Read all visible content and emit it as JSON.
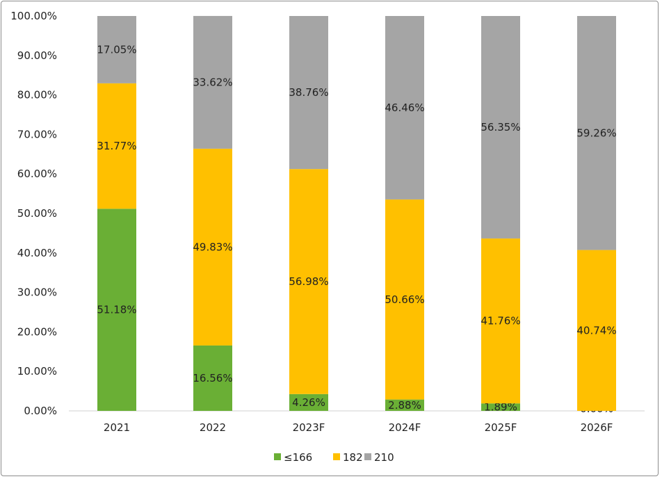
{
  "chart_data": {
    "type": "bar",
    "stacked": true,
    "categories": [
      "2021",
      "2022",
      "2023F",
      "2024F",
      "2025F",
      "2026F"
    ],
    "series": [
      {
        "name": "≤166",
        "color": "#6aaf35",
        "values": [
          51.18,
          16.56,
          4.26,
          2.88,
          1.89,
          0.0
        ]
      },
      {
        "name": "182",
        "color": "#ffc000",
        "values": [
          31.77,
          49.83,
          56.98,
          50.66,
          41.76,
          40.74
        ]
      },
      {
        "name": "210",
        "color": "#a5a5a5",
        "values": [
          17.05,
          33.62,
          38.76,
          46.46,
          56.35,
          59.26
        ]
      }
    ],
    "ylim": [
      0,
      100
    ],
    "yticks": [
      "0.00%",
      "10.00%",
      "20.00%",
      "30.00%",
      "40.00%",
      "50.00%",
      "60.00%",
      "70.00%",
      "80.00%",
      "90.00%",
      "100.00%"
    ],
    "data_labels": [
      [
        "51.18%",
        "16.56%",
        "4.26%",
        "2.88%",
        "1.89%",
        "0.00%"
      ],
      [
        "31.77%",
        "49.83%",
        "56.98%",
        "50.66%",
        "41.76%",
        "40.74%"
      ],
      [
        "17.05%",
        "33.62%",
        "38.76%",
        "46.46%",
        "56.35%",
        "59.26%"
      ]
    ],
    "legend": "bottom",
    "grid": false
  }
}
